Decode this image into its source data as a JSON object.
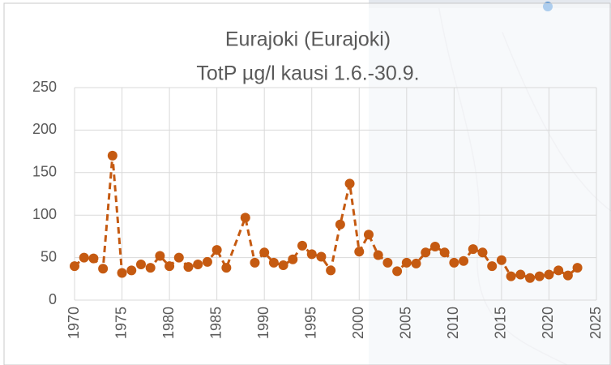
{
  "chart_data": {
    "type": "line",
    "title": "Eurajoki (Eurajoki)",
    "subtitle": "TotP µg/l kausi 1.6.-30.9.",
    "x": [
      1970,
      1971,
      1972,
      1973,
      1974,
      1975,
      1976,
      1977,
      1978,
      1979,
      1980,
      1981,
      1982,
      1983,
      1984,
      1985,
      1986,
      1988,
      1989,
      1990,
      1991,
      1992,
      1993,
      1994,
      1995,
      1996,
      1997,
      1998,
      1999,
      2000,
      2001,
      2002,
      2003,
      2004,
      2005,
      2006,
      2007,
      2008,
      2009,
      2010,
      2011,
      2012,
      2013,
      2014,
      2015,
      2016,
      2017,
      2018,
      2019,
      2020,
      2021,
      2022,
      2023
    ],
    "series": [
      {
        "color": "#c55a11",
        "values": [
          40,
          50,
          49,
          37,
          170,
          32,
          35,
          42,
          38,
          52,
          40,
          50,
          39,
          42,
          45,
          59,
          38,
          97,
          44,
          56,
          44,
          41,
          48,
          64,
          54,
          51,
          35,
          89,
          137,
          57,
          77,
          53,
          44,
          34,
          44,
          43,
          56,
          63,
          56,
          44,
          46,
          60,
          56,
          40,
          47,
          28,
          30,
          26,
          28,
          30,
          35,
          29,
          38
        ]
      }
    ],
    "xlim": [
      1970,
      2025
    ],
    "xticks": [
      1970,
      1975,
      1980,
      1985,
      1990,
      1995,
      2000,
      2005,
      2010,
      2015,
      2020,
      2025
    ],
    "ylim": [
      0,
      250
    ],
    "yticks": [
      0,
      50,
      100,
      150,
      200,
      250
    ],
    "grid": true,
    "line_style": "dashed"
  }
}
